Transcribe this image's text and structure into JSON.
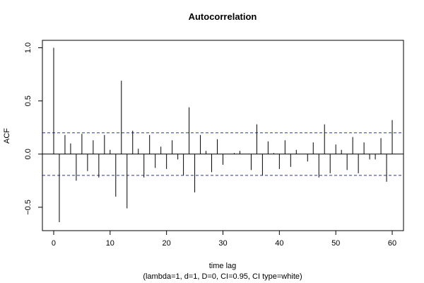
{
  "chart_data": {
    "type": "bar",
    "title": "Autocorrelation",
    "xlabel": "time lag",
    "subtitle": "(lambda=1, d=1, D=0, CI=0.95, CI type=white)",
    "ylabel": "ACF",
    "xlim": [
      -2,
      62
    ],
    "ylim": [
      -0.72,
      1.07
    ],
    "xticks": [
      0,
      10,
      20,
      30,
      40,
      50,
      60
    ],
    "yticks": [
      -0.5,
      0.0,
      0.5,
      1.0
    ],
    "xtick_labels": [
      "0",
      "10",
      "20",
      "30",
      "40",
      "50",
      "60"
    ],
    "ytick_labels": [
      "−0.5",
      "0.0",
      "0.5",
      "1.0"
    ],
    "ci_upper": 0.2,
    "ci_lower": -0.2,
    "lags": [
      0,
      1,
      2,
      3,
      4,
      5,
      6,
      7,
      8,
      9,
      10,
      11,
      12,
      13,
      14,
      15,
      16,
      17,
      18,
      19,
      20,
      21,
      22,
      23,
      24,
      25,
      26,
      27,
      28,
      29,
      30,
      31,
      32,
      33,
      34,
      35,
      36,
      37,
      38,
      39,
      40,
      41,
      42,
      43,
      44,
      45,
      46,
      47,
      48,
      49,
      50,
      51,
      52,
      53,
      54,
      55,
      56,
      57,
      58,
      59,
      60
    ],
    "acf": [
      1.0,
      -0.64,
      0.18,
      0.1,
      -0.25,
      0.19,
      -0.16,
      0.13,
      -0.22,
      0.18,
      0.04,
      -0.4,
      0.69,
      -0.51,
      0.22,
      0.05,
      -0.22,
      0.18,
      -0.13,
      0.07,
      -0.14,
      0.13,
      -0.05,
      -0.2,
      0.44,
      -0.36,
      0.18,
      0.03,
      -0.17,
      0.14,
      -0.1,
      0.0,
      0.01,
      0.03,
      0.0,
      -0.15,
      0.28,
      -0.2,
      0.12,
      0.01,
      -0.14,
      0.13,
      -0.12,
      0.04,
      0.0,
      -0.07,
      0.11,
      -0.22,
      0.28,
      -0.18,
      0.09,
      0.04,
      -0.15,
      0.16,
      -0.18,
      0.11,
      -0.05,
      -0.05,
      0.15,
      -0.26,
      0.32
    ],
    "colors": {
      "ci_line": "#3030b0",
      "bars": "#000000",
      "axis": "#000000"
    },
    "grid": false,
    "legend": "none"
  }
}
